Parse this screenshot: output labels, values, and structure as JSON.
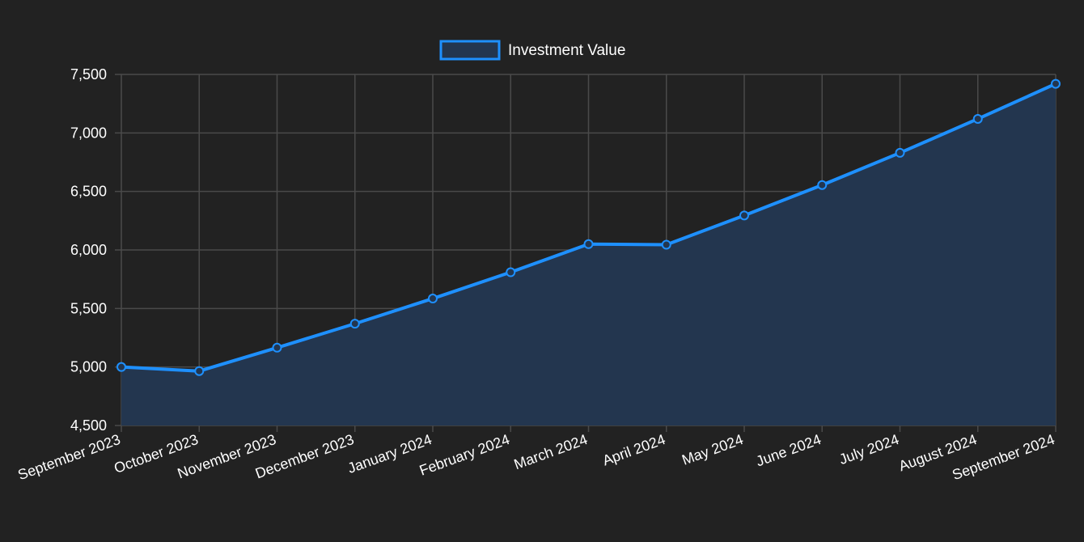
{
  "colors": {
    "background": "#222222",
    "grid": "#4a4a4a",
    "line": "#1e90ff",
    "fill": "#23364f",
    "text": "#ffffff"
  },
  "chart_data": {
    "type": "area",
    "legend_position": "top-center",
    "grid": true,
    "categories": [
      "September 2023",
      "October 2023",
      "November 2023",
      "December 2023",
      "January 2024",
      "February 2024",
      "March 2024",
      "April 2024",
      "May 2024",
      "June 2024",
      "July 2024",
      "August 2024",
      "September 2024"
    ],
    "series": [
      {
        "name": "Investment Value",
        "values": [
          5000,
          4965,
          5165,
          5370,
          5585,
          5810,
          6050,
          6045,
          6295,
          6555,
          6830,
          7120,
          7420
        ]
      }
    ],
    "ylim": [
      4500,
      7500
    ],
    "yticks": [
      4500,
      5000,
      5500,
      6000,
      6500,
      7000,
      7500
    ],
    "ytick_labels": [
      "4,500",
      "5,000",
      "5,500",
      "6,000",
      "6,500",
      "7,000",
      "7,500"
    ]
  }
}
